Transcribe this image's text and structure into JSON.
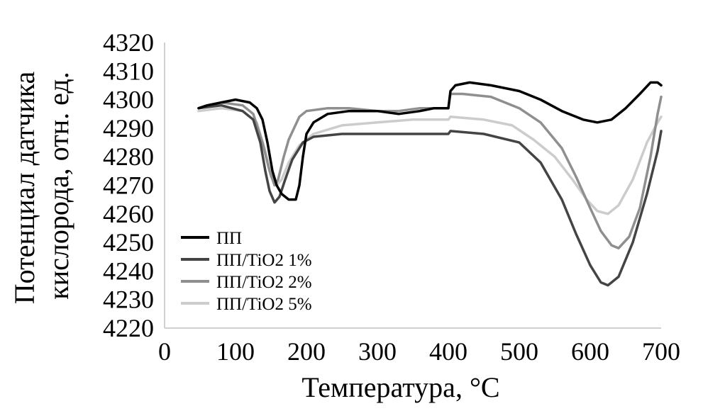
{
  "chart_data": {
    "type": "line",
    "title": "",
    "xlabel": "Температура, °C",
    "ylabel": [
      "Потенциал датчика",
      "кислорода, отн. ед."
    ],
    "xlim": [
      0,
      700
    ],
    "ylim": [
      4220,
      4320
    ],
    "xticks": [
      "0",
      "100",
      "200",
      "300",
      "400",
      "500",
      "600",
      "700"
    ],
    "yticks": [
      "4220",
      "4230",
      "4240",
      "4250",
      "4260",
      "4270",
      "4280",
      "4290",
      "4300",
      "4310",
      "4320"
    ],
    "grid": false,
    "legend_position": "bottom-left",
    "series": [
      {
        "name": "ПП",
        "color": "#000000",
        "points": [
          [
            48,
            4297
          ],
          [
            60,
            4298
          ],
          [
            80,
            4299
          ],
          [
            100,
            4300
          ],
          [
            120,
            4299
          ],
          [
            130,
            4297
          ],
          [
            138,
            4293
          ],
          [
            145,
            4285
          ],
          [
            152,
            4275
          ],
          [
            158,
            4270
          ],
          [
            165,
            4267
          ],
          [
            175,
            4265
          ],
          [
            185,
            4265
          ],
          [
            190,
            4270
          ],
          [
            195,
            4280
          ],
          [
            200,
            4288
          ],
          [
            210,
            4292
          ],
          [
            230,
            4295
          ],
          [
            260,
            4296
          ],
          [
            300,
            4296
          ],
          [
            330,
            4295
          ],
          [
            360,
            4296
          ],
          [
            380,
            4297
          ],
          [
            400,
            4297
          ],
          [
            403,
            4303
          ],
          [
            410,
            4305
          ],
          [
            430,
            4306
          ],
          [
            460,
            4305
          ],
          [
            500,
            4303
          ],
          [
            530,
            4300
          ],
          [
            560,
            4296
          ],
          [
            590,
            4293
          ],
          [
            610,
            4292
          ],
          [
            630,
            4293
          ],
          [
            650,
            4297
          ],
          [
            670,
            4302
          ],
          [
            685,
            4306
          ],
          [
            695,
            4306
          ],
          [
            700,
            4305
          ]
        ]
      },
      {
        "name": "ПП/TiO2 1%",
        "color": "#444444",
        "points": [
          [
            48,
            4297
          ],
          [
            80,
            4298
          ],
          [
            110,
            4296
          ],
          [
            125,
            4293
          ],
          [
            135,
            4285
          ],
          [
            142,
            4275
          ],
          [
            148,
            4268
          ],
          [
            155,
            4264
          ],
          [
            162,
            4266
          ],
          [
            170,
            4272
          ],
          [
            180,
            4279
          ],
          [
            195,
            4285
          ],
          [
            210,
            4287
          ],
          [
            250,
            4288
          ],
          [
            300,
            4288
          ],
          [
            350,
            4288
          ],
          [
            400,
            4288
          ],
          [
            403,
            4289
          ],
          [
            450,
            4288
          ],
          [
            500,
            4285
          ],
          [
            530,
            4278
          ],
          [
            560,
            4265
          ],
          [
            580,
            4253
          ],
          [
            600,
            4242
          ],
          [
            615,
            4236
          ],
          [
            625,
            4235
          ],
          [
            640,
            4238
          ],
          [
            660,
            4250
          ],
          [
            680,
            4267
          ],
          [
            695,
            4282
          ],
          [
            700,
            4289
          ]
        ]
      },
      {
        "name": "ПП/TiO2 2%",
        "color": "#8f8f8f",
        "points": [
          [
            48,
            4297
          ],
          [
            80,
            4299
          ],
          [
            110,
            4298
          ],
          [
            125,
            4295
          ],
          [
            138,
            4285
          ],
          [
            148,
            4275
          ],
          [
            155,
            4270
          ],
          [
            160,
            4272
          ],
          [
            168,
            4280
          ],
          [
            175,
            4286
          ],
          [
            190,
            4294
          ],
          [
            200,
            4296
          ],
          [
            230,
            4297
          ],
          [
            260,
            4297
          ],
          [
            300,
            4296
          ],
          [
            330,
            4296
          ],
          [
            360,
            4297
          ],
          [
            400,
            4297
          ],
          [
            403,
            4302
          ],
          [
            420,
            4302
          ],
          [
            460,
            4301
          ],
          [
            500,
            4297
          ],
          [
            530,
            4292
          ],
          [
            560,
            4283
          ],
          [
            580,
            4273
          ],
          [
            600,
            4262
          ],
          [
            615,
            4254
          ],
          [
            630,
            4249
          ],
          [
            640,
            4248
          ],
          [
            655,
            4252
          ],
          [
            670,
            4262
          ],
          [
            685,
            4280
          ],
          [
            695,
            4295
          ],
          [
            700,
            4301
          ]
        ]
      },
      {
        "name": "ПП/TiO2 5%",
        "color": "#cccccc",
        "points": [
          [
            48,
            4296
          ],
          [
            80,
            4297
          ],
          [
            110,
            4296
          ],
          [
            130,
            4292
          ],
          [
            142,
            4282
          ],
          [
            150,
            4273
          ],
          [
            158,
            4270
          ],
          [
            165,
            4272
          ],
          [
            175,
            4278
          ],
          [
            190,
            4284
          ],
          [
            210,
            4288
          ],
          [
            250,
            4291
          ],
          [
            300,
            4292
          ],
          [
            350,
            4293
          ],
          [
            400,
            4293
          ],
          [
            403,
            4294
          ],
          [
            450,
            4293
          ],
          [
            490,
            4291
          ],
          [
            520,
            4286
          ],
          [
            550,
            4280
          ],
          [
            575,
            4272
          ],
          [
            595,
            4265
          ],
          [
            610,
            4261
          ],
          [
            625,
            4260
          ],
          [
            640,
            4263
          ],
          [
            660,
            4272
          ],
          [
            680,
            4285
          ],
          [
            695,
            4292
          ],
          [
            700,
            4294
          ]
        ]
      }
    ]
  }
}
